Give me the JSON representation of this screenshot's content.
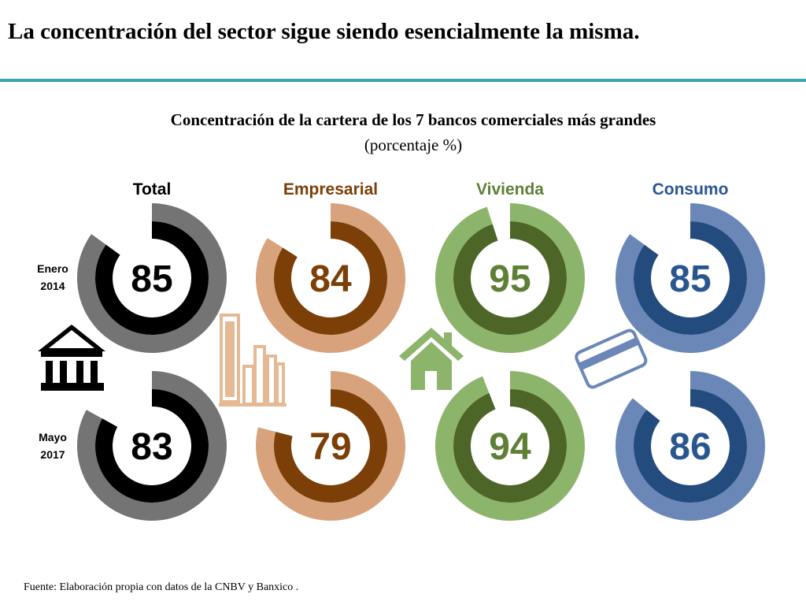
{
  "slide": {
    "title": "La concentración del sector sigue siendo esencialmente la misma.",
    "source": "Fuente: Elaboración propia con datos de la CNBV y Banxico ."
  },
  "chart_data": {
    "type": "donut",
    "title": "Concentración de la cartera de los 7 bancos comerciales más grandes",
    "subtitle": "(porcentaje %)",
    "unit": "%",
    "max": 100,
    "categories": [
      "Total",
      "Empresarial",
      "Vivienda",
      "Consumo"
    ],
    "row_labels": [
      [
        "Enero",
        "2014"
      ],
      [
        "Mayo",
        "2017"
      ]
    ],
    "series": [
      {
        "name": "Enero 2014",
        "values": [
          85,
          84,
          95,
          85
        ]
      },
      {
        "name": "Mayo 2017",
        "values": [
          83,
          79,
          94,
          86
        ]
      }
    ],
    "colors": {
      "Total": {
        "outer": "#747474",
        "inner": "#000000",
        "label": "#000000"
      },
      "Empresarial": {
        "outer": "#d8a37c",
        "inner": "#7b3f07",
        "label": "#7b3f07"
      },
      "Vivienda": {
        "outer": "#8cb46a",
        "inner": "#4e6528",
        "label": "#5e7f36"
      },
      "Consumo": {
        "outer": "#6a87b7",
        "inner": "#234b7e",
        "label": "#2a5690"
      }
    },
    "icons": [
      "bank-icon",
      "buildings-icon",
      "house-icon",
      "credit-card-icon"
    ]
  }
}
